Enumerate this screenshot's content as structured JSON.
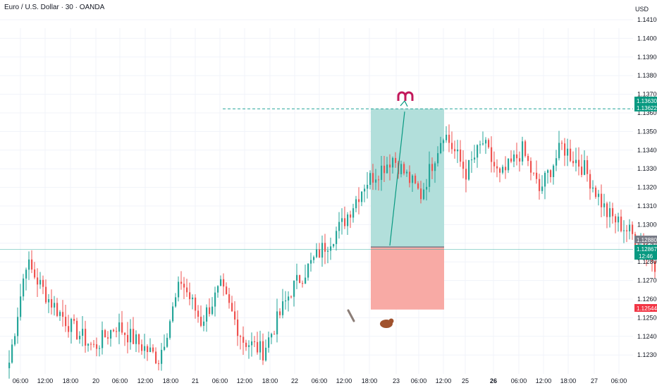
{
  "header": {
    "title": "Euro / U.S. Dollar · 30 · OANDA",
    "currency": "USD"
  },
  "colors": {
    "up": "#26a69a",
    "down": "#ef5350",
    "grid": "#f0f3fa",
    "target_zone": "#b2dfdb",
    "stop_zone": "#f8aaa5",
    "tag_green": "#089981",
    "tag_gray": "#787b86",
    "tag_red": "#f23645"
  },
  "chart_data": {
    "type": "candlestick",
    "y_ticks": [
      "1.14100",
      "1.14000",
      "1.13900",
      "1.13800",
      "1.13700",
      "1.13600",
      "1.13500",
      "1.13400",
      "1.13300",
      "1.13200",
      "1.13100",
      "1.13000",
      "1.12900",
      "1.12800",
      "1.12700",
      "1.12600",
      "1.12500",
      "1.12400",
      "1.12300"
    ],
    "x_ticks": [
      {
        "label": "06:00",
        "bold": false
      },
      {
        "label": "12:00",
        "bold": false
      },
      {
        "label": "18:00",
        "bold": false
      },
      {
        "label": "20",
        "bold": false
      },
      {
        "label": "06:00",
        "bold": false
      },
      {
        "label": "12:00",
        "bold": false
      },
      {
        "label": "18:00",
        "bold": false
      },
      {
        "label": "21",
        "bold": false
      },
      {
        "label": "06:00",
        "bold": false
      },
      {
        "label": "12:00",
        "bold": false
      },
      {
        "label": "18:00",
        "bold": false
      },
      {
        "label": "22",
        "bold": false
      },
      {
        "label": "06:00",
        "bold": false
      },
      {
        "label": "12:00",
        "bold": false
      },
      {
        "label": "18:00",
        "bold": false
      },
      {
        "label": "23",
        "bold": false
      },
      {
        "label": "06:00",
        "bold": false
      },
      {
        "label": "12:00",
        "bold": false
      },
      {
        "label": "25",
        "bold": false
      },
      {
        "label": "26",
        "bold": true
      },
      {
        "label": "06:00",
        "bold": false
      },
      {
        "label": "12:00",
        "bold": false
      },
      {
        "label": "18:00",
        "bold": false
      },
      {
        "label": "27",
        "bold": false
      },
      {
        "label": "06:00",
        "bold": false
      }
    ],
    "price_tags": [
      {
        "value": "1.13630",
        "y": 1.1363,
        "color": "tag_green",
        "sub": ""
      },
      {
        "value": "1.13622",
        "y": 1.13622,
        "color": "tag_green",
        "sub": ""
      },
      {
        "value": "1.12880",
        "y": 1.1288,
        "color": "tag_gray",
        "sub": ""
      },
      {
        "value": "1.12867",
        "y": 1.12867,
        "color": "tag_green",
        "sub": "12:46"
      },
      {
        "value": "1.12544",
        "y": 1.12544,
        "color": "tag_red",
        "sub": ""
      }
    ],
    "position": {
      "entry": 1.1288,
      "target": 1.13622,
      "stop": 1.12544
    },
    "key_points": [
      {
        "t": 0,
        "p": 1.1226
      },
      {
        "t": 6,
        "p": 1.128
      },
      {
        "t": 14,
        "p": 1.126
      },
      {
        "t": 22,
        "p": 1.1245
      },
      {
        "t": 30,
        "p": 1.1234
      },
      {
        "t": 38,
        "p": 1.1246
      },
      {
        "t": 46,
        "p": 1.1236
      },
      {
        "t": 53,
        "p": 1.1228
      },
      {
        "t": 61,
        "p": 1.127
      },
      {
        "t": 68,
        "p": 1.1248
      },
      {
        "t": 75,
        "p": 1.1266
      },
      {
        "t": 83,
        "p": 1.1238
      },
      {
        "t": 90,
        "p": 1.1232
      },
      {
        "t": 100,
        "p": 1.1265
      },
      {
        "t": 110,
        "p": 1.1285
      },
      {
        "t": 118,
        "p": 1.13
      },
      {
        "t": 126,
        "p": 1.1322
      },
      {
        "t": 136,
        "p": 1.1336
      },
      {
        "t": 146,
        "p": 1.1316
      },
      {
        "t": 154,
        "p": 1.135
      },
      {
        "t": 162,
        "p": 1.1328
      },
      {
        "t": 168,
        "p": 1.1344
      },
      {
        "t": 174,
        "p": 1.1325
      },
      {
        "t": 182,
        "p": 1.134
      },
      {
        "t": 188,
        "p": 1.1318
      },
      {
        "t": 196,
        "p": 1.1342
      },
      {
        "t": 204,
        "p": 1.133
      },
      {
        "t": 212,
        "p": 1.1306
      },
      {
        "t": 220,
        "p": 1.1296
      },
      {
        "t": 228,
        "p": 1.1282
      },
      {
        "t": 234,
        "p": 1.1266
      },
      {
        "t": 240,
        "p": 1.1273
      },
      {
        "t": 248,
        "p": 1.128
      },
      {
        "t": 255,
        "p": 1.1286
      }
    ]
  }
}
